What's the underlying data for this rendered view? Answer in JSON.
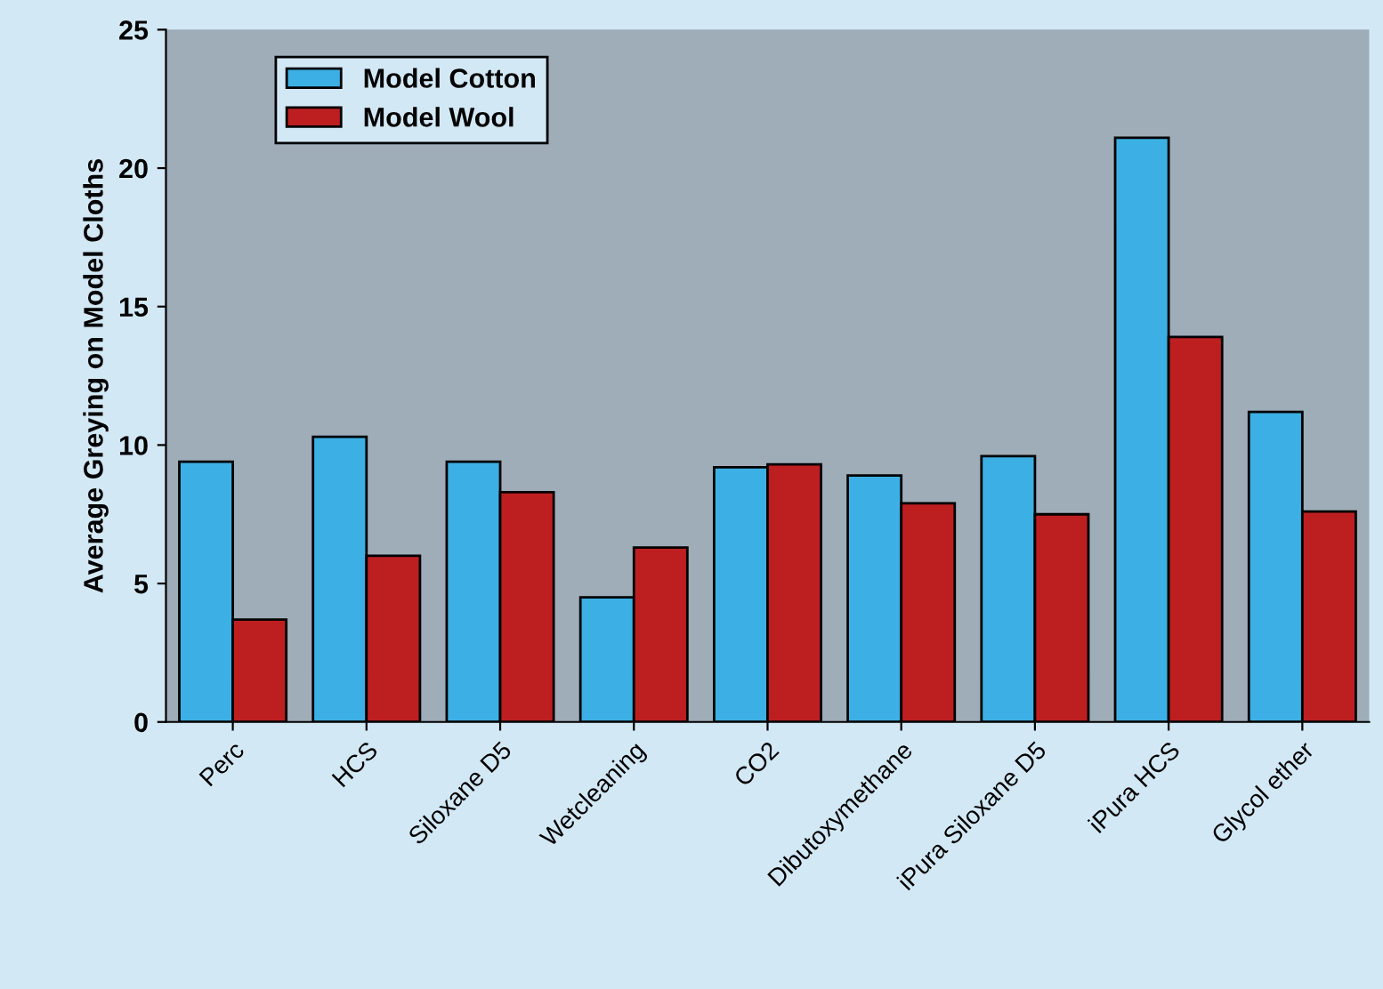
{
  "chart_data": {
    "type": "bar",
    "ylabel": "Average Greying on Model Cloths",
    "categories": [
      "Perc",
      "HCS",
      "Siloxane D5",
      "Wetcleaning",
      "CO2",
      "Dibutoxymethane",
      "iPura Siloxane D5",
      "iPura HCS",
      "Glycol ether"
    ],
    "series": [
      {
        "name": "Model Cotton",
        "color": "#3cb0e4",
        "values": [
          9.4,
          10.3,
          9.4,
          4.5,
          9.2,
          8.9,
          9.6,
          21.1,
          11.2
        ]
      },
      {
        "name": "Model Wool",
        "color": "#bd1f21",
        "values": [
          3.7,
          6.0,
          8.3,
          6.3,
          9.3,
          7.9,
          7.5,
          13.9,
          7.6
        ]
      }
    ],
    "ylim": [
      0,
      25
    ],
    "yticks": [
      0,
      5,
      10,
      15,
      20,
      25
    ],
    "grid": false,
    "legend": "top left"
  }
}
